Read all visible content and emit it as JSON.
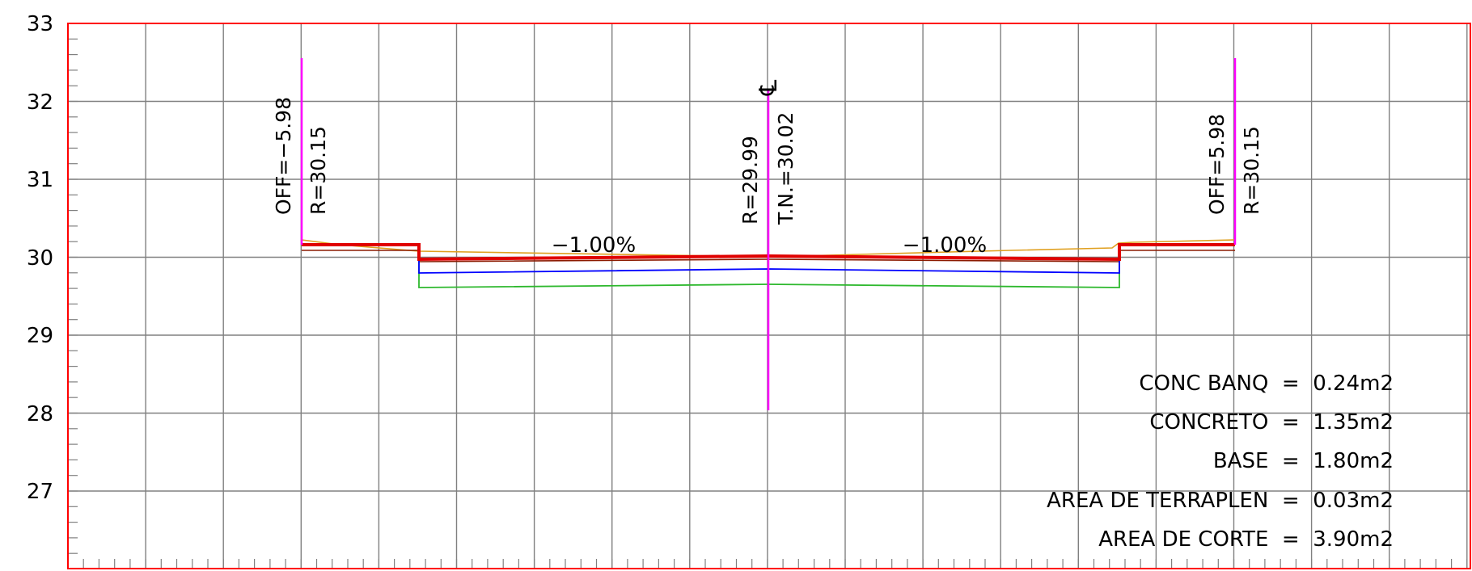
{
  "colors": {
    "background": "#ffffff",
    "frame": "#ff0000",
    "grid": "#808080",
    "centerline": "#ff00ff",
    "terrain": "#e0a020",
    "subgrade": "#8b1a00",
    "pavement": "#e00000",
    "base": "#0000ff",
    "subbase": "#2db82d"
  },
  "y_axis": {
    "ticks": [
      "33",
      "32",
      "31",
      "30",
      "29",
      "28",
      "27"
    ]
  },
  "left_edge": {
    "offset_label": "OFF=−5.98",
    "elev_label": "R=30.15"
  },
  "centerline": {
    "symbol": "℄",
    "elev_label": "R=29.99",
    "terrain_label": "T.N.=30.02"
  },
  "right_edge": {
    "offset_label": "OFF=5.98",
    "elev_label": "R=30.15"
  },
  "slopes": {
    "left": "−1.00%",
    "right": "−1.00%"
  },
  "areas": [
    "CONC BANQ  =  0.24m2",
    "CONCRETO  =  1.35m2",
    "BASE  =  1.80m2",
    "AREA DE TERRAPLEN  =  0.03m2",
    "AREA DE CORTE  =  3.90m2"
  ]
}
